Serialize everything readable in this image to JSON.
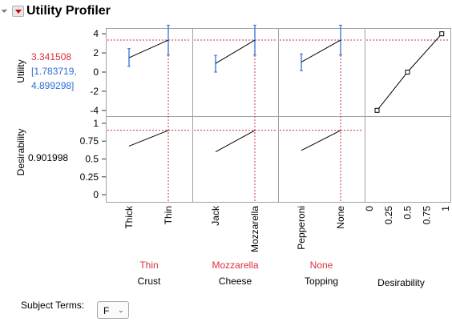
{
  "panel": {
    "title": "Utility Profiler",
    "collapse_icon": "disclosure-triangle",
    "menu_icon": "red-triangle-menu"
  },
  "rows": {
    "utility": {
      "label": "Utility",
      "value": "3.341508",
      "ci_line1": "[1.783719,",
      "ci_line2": "4.899298]",
      "yticks": [
        "4",
        "2",
        "0",
        "-2",
        "-4"
      ],
      "ylim": [
        -4.6,
        4.6
      ]
    },
    "desirability": {
      "label": "Desirability",
      "value": "0.901998",
      "yticks": [
        "1",
        "0.75",
        "0.5",
        "0.25",
        "0"
      ],
      "ylim": [
        -0.1,
        1.1
      ]
    }
  },
  "factors": [
    {
      "name": "Crust",
      "current": "Thin",
      "levels": [
        "Thick",
        "Thin"
      ],
      "utility": [
        1.5,
        3.34
      ],
      "ci_low": [
        0.6,
        1.78
      ],
      "ci_high": [
        2.45,
        4.9
      ],
      "desirability": [
        0.68,
        0.9
      ]
    },
    {
      "name": "Cheese",
      "current": "Mozzarella",
      "levels": [
        "Jack",
        "Mozzarella"
      ],
      "utility": [
        0.9,
        3.34
      ],
      "ci_low": [
        0.0,
        1.78
      ],
      "ci_high": [
        1.75,
        4.9
      ],
      "desirability": [
        0.6,
        0.9
      ]
    },
    {
      "name": "Topping",
      "current": "None",
      "levels": [
        "Pepperoni",
        "None"
      ],
      "utility": [
        1.05,
        3.34
      ],
      "ci_low": [
        0.15,
        1.78
      ],
      "ci_high": [
        1.9,
        4.9
      ],
      "desirability": [
        0.62,
        0.9
      ]
    }
  ],
  "desirability_function": {
    "label": "Desirability",
    "xticks": [
      "0",
      "0.25",
      "0.5",
      "0.75",
      "1"
    ],
    "points": [
      [
        0.1,
        -4
      ],
      [
        0.5,
        0
      ],
      [
        0.95,
        4
      ]
    ],
    "current": 0.901998
  },
  "subject_terms": {
    "label": "Subject Terms:",
    "value": "F"
  },
  "colors": {
    "current_value": "#d9323c",
    "ci_text": "#2f6fd6",
    "ci_bar": "#2f6fd6",
    "reference_line": "#c8323c",
    "frame": "#a0a0a0"
  }
}
